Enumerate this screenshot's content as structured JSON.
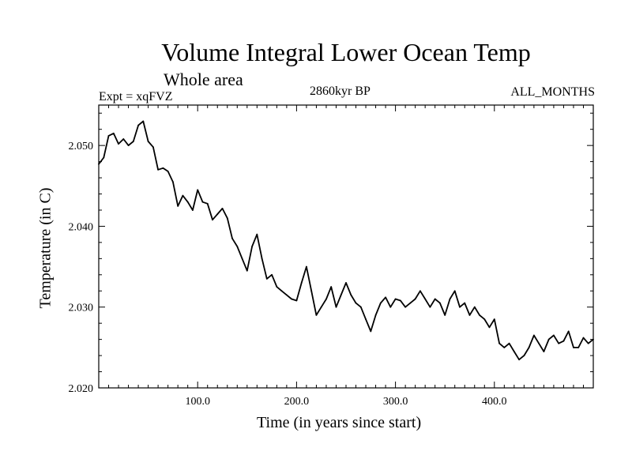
{
  "chart_data": {
    "type": "line",
    "title": "Volume Integral Lower Ocean Temp",
    "subtitle": "Whole area",
    "center_label": "2860kyr BP",
    "expt_label": "Expt = xqFVZ",
    "right_label": "ALL_MONTHS",
    "xlabel": "Time (in years since start)",
    "ylabel": "Temperature (in C)",
    "xlim": [
      0,
      500
    ],
    "ylim": [
      2.02,
      2.055
    ],
    "xticks": [
      100,
      200,
      300,
      400
    ],
    "xtick_labels": [
      "100.0",
      "200.0",
      "300.0",
      "400.0"
    ],
    "yticks": [
      2.02,
      2.03,
      2.04,
      2.05
    ],
    "ytick_labels": [
      "2.020",
      "2.030",
      "2.040",
      "2.050"
    ],
    "series": [
      {
        "name": "Volume Integral Lower Ocean Temp",
        "color": "#000000",
        "x": [
          0,
          5,
          10,
          15,
          20,
          25,
          30,
          35,
          40,
          45,
          50,
          55,
          60,
          65,
          70,
          75,
          80,
          85,
          90,
          95,
          100,
          105,
          110,
          115,
          120,
          125,
          130,
          135,
          140,
          145,
          150,
          155,
          160,
          165,
          170,
          175,
          180,
          185,
          190,
          195,
          200,
          205,
          210,
          215,
          220,
          225,
          230,
          235,
          240,
          245,
          250,
          255,
          260,
          265,
          270,
          275,
          280,
          285,
          290,
          295,
          300,
          305,
          310,
          315,
          320,
          325,
          330,
          335,
          340,
          345,
          350,
          355,
          360,
          365,
          370,
          375,
          380,
          385,
          390,
          395,
          400,
          405,
          410,
          415,
          420,
          425,
          430,
          435,
          440,
          445,
          450,
          455,
          460,
          465,
          470,
          475,
          480,
          485,
          490,
          495,
          500
        ],
        "values": [
          2.0477,
          2.0485,
          2.0512,
          2.0515,
          2.0502,
          2.0508,
          2.05,
          2.0505,
          2.0525,
          2.053,
          2.0505,
          2.0498,
          2.047,
          2.0472,
          2.0468,
          2.0455,
          2.0425,
          2.0438,
          2.043,
          2.042,
          2.0445,
          2.043,
          2.0428,
          2.0408,
          2.0415,
          2.0422,
          2.041,
          2.0385,
          2.0375,
          2.036,
          2.0345,
          2.0375,
          2.039,
          2.036,
          2.0335,
          2.034,
          2.0325,
          2.032,
          2.0315,
          2.031,
          2.0308,
          2.033,
          2.035,
          2.032,
          2.029,
          2.03,
          2.031,
          2.0325,
          2.03,
          2.0315,
          2.033,
          2.0315,
          2.0305,
          2.03,
          2.0285,
          2.027,
          2.029,
          2.0305,
          2.0312,
          2.03,
          2.031,
          2.0308,
          2.03,
          2.0305,
          2.031,
          2.032,
          2.031,
          2.03,
          2.031,
          2.0305,
          2.029,
          2.031,
          2.032,
          2.03,
          2.0305,
          2.029,
          2.03,
          2.029,
          2.0285,
          2.0275,
          2.0285,
          2.0255,
          2.025,
          2.0255,
          2.0245,
          2.0235,
          2.024,
          2.025,
          2.0265,
          2.0255,
          2.0245,
          2.026,
          2.0265,
          2.0255,
          2.0258,
          2.027,
          2.025,
          2.025,
          2.0262,
          2.0255,
          2.026
        ]
      }
    ]
  }
}
